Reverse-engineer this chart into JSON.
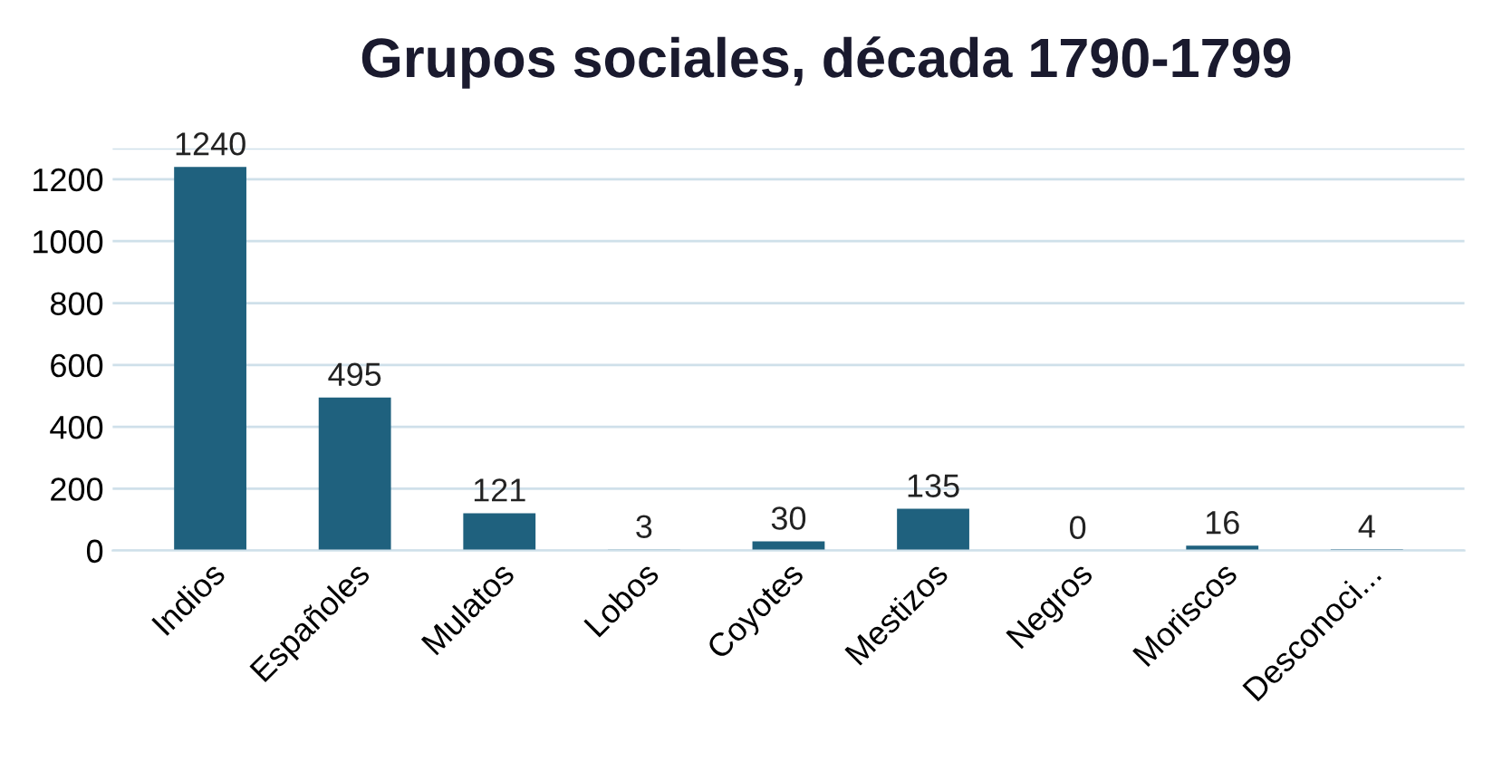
{
  "chart_data": {
    "type": "bar",
    "title": "Grupos sociales, década 1790-1799",
    "categories": [
      "Indios",
      "Españoles",
      "Mulatos",
      "Lobos",
      "Coyotes",
      "Mestizos",
      "Negros",
      "Moriscos",
      "Desconoci..."
    ],
    "values": [
      1240,
      495,
      121,
      3,
      30,
      135,
      0,
      16,
      4
    ],
    "color": "#1f617e",
    "ylim": [
      0,
      1300
    ],
    "yticks": [
      0,
      200,
      400,
      600,
      800,
      1000,
      1200,
      {
        "value": 1300,
        "label": null
      }
    ],
    "grid": "y",
    "data_labels": true
  }
}
